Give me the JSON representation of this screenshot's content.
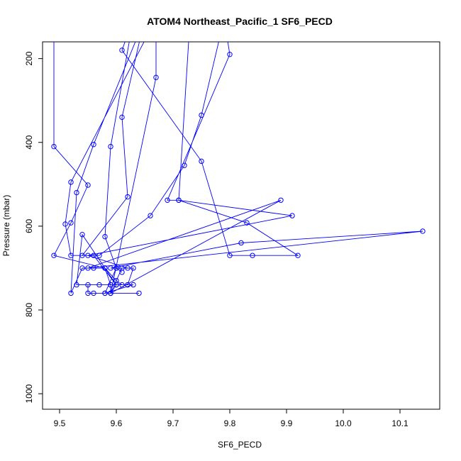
{
  "chart_data": {
    "type": "line",
    "title": "ATOM4 Northeast_Pacific_1 SF6_PECD",
    "xlabel": "SF6_PECD",
    "ylabel": "Pressure (mbar)",
    "xlim": [
      9.47,
      10.17
    ],
    "ylim": [
      1037,
      160
    ],
    "y_reversed": true,
    "grid": false,
    "xticks": [
      9.5,
      9.6,
      9.7,
      9.8,
      9.9,
      10.0,
      10.1
    ],
    "xtick_labels": [
      "9.5",
      "9.6",
      "9.7",
      "9.8",
      "9.9",
      "10.0",
      "10.1"
    ],
    "yticks": [
      200,
      400,
      600,
      800,
      1000
    ],
    "ytick_labels": [
      "200",
      "400",
      "600",
      "800",
      "1000"
    ],
    "color": "#0000ff",
    "series": [
      {
        "points": [
          [
            9.49,
            105
          ],
          [
            9.49,
            410
          ],
          [
            9.55,
            502
          ],
          [
            9.52,
            592
          ],
          [
            9.49,
            670
          ],
          [
            9.58,
            700
          ],
          [
            9.59,
            740
          ],
          [
            9.6,
            740
          ],
          [
            9.59,
            760
          ],
          [
            9.58,
            760
          ],
          [
            9.63,
            740
          ],
          [
            9.62,
            740
          ],
          [
            9.61,
            740
          ],
          [
            9.6,
            730
          ],
          [
            9.58,
            700
          ],
          [
            9.56,
            700
          ],
          [
            9.54,
            700
          ],
          [
            9.52,
            760
          ],
          [
            9.53,
            520
          ],
          [
            9.56,
            405
          ],
          [
            9.65,
            105
          ],
          [
            9.61,
            340
          ],
          [
            9.62,
            530
          ],
          [
            9.54,
            670
          ],
          [
            9.56,
            670
          ],
          [
            9.6,
            740
          ],
          [
            9.58,
            700
          ],
          [
            9.54,
            620
          ],
          [
            9.53,
            740
          ],
          [
            9.59,
            740
          ],
          [
            9.59,
            760
          ],
          [
            9.61,
            700
          ],
          [
            9.63,
            700
          ],
          [
            9.62,
            740
          ],
          [
            9.57,
            740
          ],
          [
            9.55,
            740
          ],
          [
            9.55,
            760
          ],
          [
            9.56,
            760
          ],
          [
            9.64,
            760
          ],
          [
            9.58,
            760
          ],
          [
            9.6,
            700
          ],
          [
            9.61,
            710
          ],
          [
            9.6,
            700
          ],
          [
            9.58,
            625
          ],
          [
            9.59,
            410
          ],
          [
            9.63,
            105
          ],
          [
            9.61,
            180
          ],
          [
            9.75,
            445
          ],
          [
            9.8,
            670
          ],
          [
            9.84,
            670
          ],
          [
            9.92,
            670
          ],
          [
            9.83,
            592
          ],
          [
            9.71,
            538
          ],
          [
            9.69,
            538
          ],
          [
            9.8,
            190
          ],
          [
            9.79,
            105
          ],
          [
            9.75,
            335
          ],
          [
            9.72,
            455
          ],
          [
            9.66,
            575
          ],
          [
            9.57,
            670
          ],
          [
            9.52,
            670
          ],
          [
            9.51,
            595
          ],
          [
            9.52,
            495
          ],
          [
            9.67,
            105
          ],
          [
            9.67,
            245
          ],
          [
            9.59,
            760
          ],
          [
            9.89,
            538
          ],
          [
            9.55,
            700
          ],
          [
            10.14,
            612
          ],
          [
            9.82,
            640
          ],
          [
            9.59,
            700
          ],
          [
            9.62,
            700
          ],
          [
            9.55,
            670
          ],
          [
            9.91,
            575
          ],
          [
            9.71,
            538
          ],
          [
            9.73,
            105
          ]
        ]
      }
    ]
  }
}
